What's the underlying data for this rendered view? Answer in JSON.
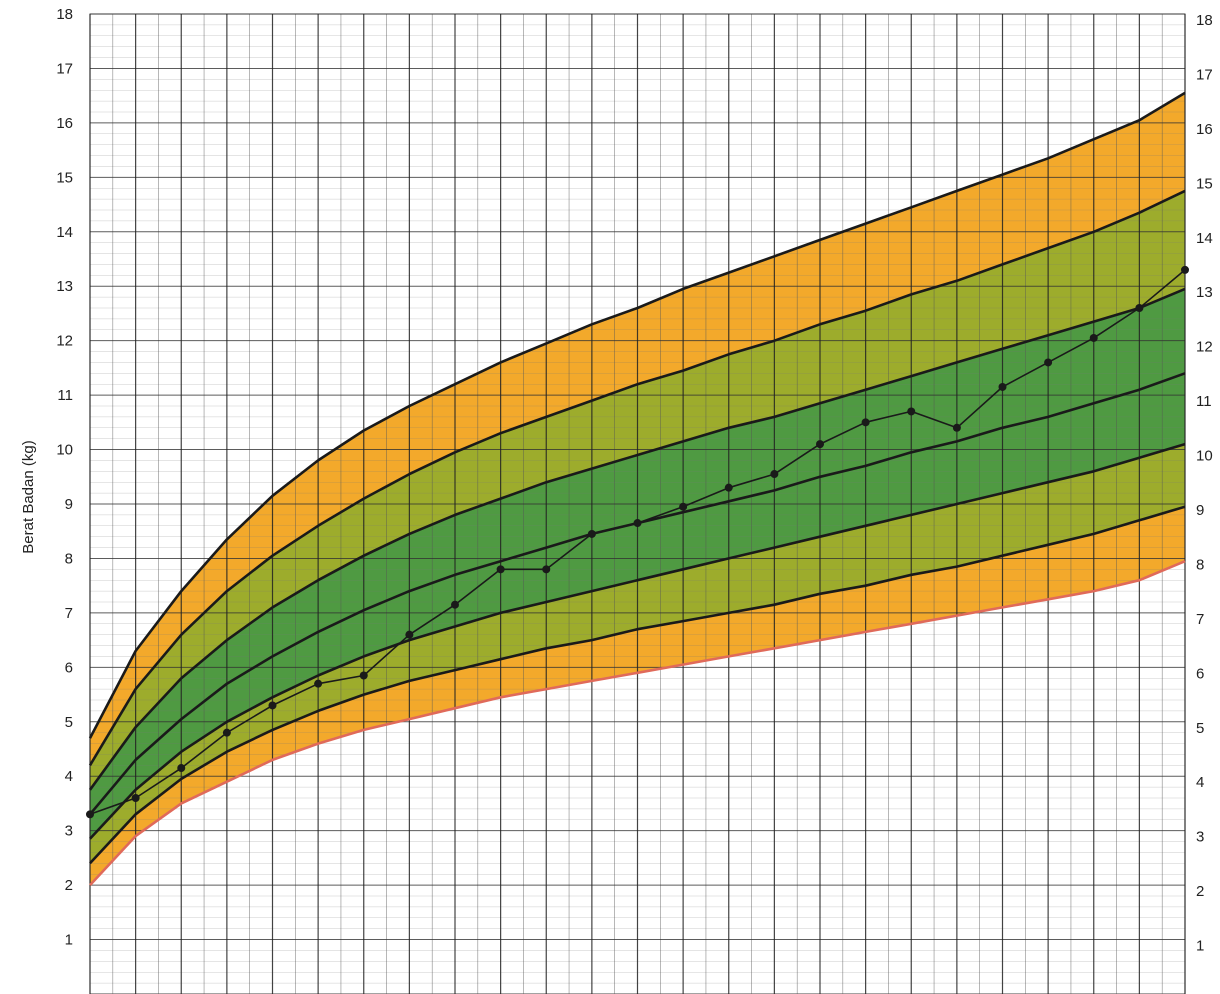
{
  "chart_data": {
    "type": "line",
    "ylabel": "Berat Badan (kg)",
    "ylim": [
      0,
      18
    ],
    "y_ticks": [
      "1",
      "2",
      "3",
      "4",
      "5",
      "6",
      "7",
      "8",
      "9",
      "10",
      "11",
      "12",
      "13",
      "14",
      "15",
      "16",
      "17",
      "18"
    ],
    "grid": true,
    "x_unlabeled_major_cells": 24,
    "curves": [
      {
        "name": "",
        "points": [
          [
            0,
            2.0
          ],
          [
            1,
            2.9
          ],
          [
            2,
            3.5
          ],
          [
            3,
            3.9
          ],
          [
            4,
            4.3
          ],
          [
            5,
            4.6
          ],
          [
            6,
            4.85
          ],
          [
            7,
            5.05
          ],
          [
            8,
            5.25
          ],
          [
            9,
            5.45
          ],
          [
            10,
            5.6
          ],
          [
            11,
            5.75
          ],
          [
            12,
            5.9
          ],
          [
            13,
            6.05
          ],
          [
            14,
            6.2
          ],
          [
            15,
            6.35
          ],
          [
            16,
            6.5
          ],
          [
            17,
            6.65
          ],
          [
            18,
            6.8
          ],
          [
            19,
            6.95
          ],
          [
            20,
            7.1
          ],
          [
            21,
            7.25
          ],
          [
            22,
            7.4
          ],
          [
            23,
            7.6
          ],
          [
            24,
            7.95
          ]
        ]
      },
      {
        "name": "",
        "points": [
          [
            0,
            2.4
          ],
          [
            1,
            3.3
          ],
          [
            2,
            3.95
          ],
          [
            3,
            4.45
          ],
          [
            4,
            4.85
          ],
          [
            5,
            5.2
          ],
          [
            6,
            5.5
          ],
          [
            7,
            5.75
          ],
          [
            8,
            5.95
          ],
          [
            9,
            6.15
          ],
          [
            10,
            6.35
          ],
          [
            11,
            6.5
          ],
          [
            12,
            6.7
          ],
          [
            13,
            6.85
          ],
          [
            14,
            7.0
          ],
          [
            15,
            7.15
          ],
          [
            16,
            7.35
          ],
          [
            17,
            7.5
          ],
          [
            18,
            7.7
          ],
          [
            19,
            7.85
          ],
          [
            20,
            8.05
          ],
          [
            21,
            8.25
          ],
          [
            22,
            8.45
          ],
          [
            23,
            8.7
          ],
          [
            24,
            8.95
          ]
        ]
      },
      {
        "name": "",
        "points": [
          [
            0,
            2.85
          ],
          [
            1,
            3.75
          ],
          [
            2,
            4.45
          ],
          [
            3,
            5.0
          ],
          [
            4,
            5.45
          ],
          [
            5,
            5.85
          ],
          [
            6,
            6.2
          ],
          [
            7,
            6.5
          ],
          [
            8,
            6.75
          ],
          [
            9,
            7.0
          ],
          [
            10,
            7.2
          ],
          [
            11,
            7.4
          ],
          [
            12,
            7.6
          ],
          [
            13,
            7.8
          ],
          [
            14,
            8.0
          ],
          [
            15,
            8.2
          ],
          [
            16,
            8.4
          ],
          [
            17,
            8.6
          ],
          [
            18,
            8.8
          ],
          [
            19,
            9.0
          ],
          [
            20,
            9.2
          ],
          [
            21,
            9.4
          ],
          [
            22,
            9.6
          ],
          [
            23,
            9.85
          ],
          [
            24,
            10.1
          ]
        ]
      },
      {
        "name": "",
        "points": [
          [
            0,
            3.3
          ],
          [
            1,
            4.3
          ],
          [
            2,
            5.05
          ],
          [
            3,
            5.7
          ],
          [
            4,
            6.2
          ],
          [
            5,
            6.65
          ],
          [
            6,
            7.05
          ],
          [
            7,
            7.4
          ],
          [
            8,
            7.7
          ],
          [
            9,
            7.95
          ],
          [
            10,
            8.2
          ],
          [
            11,
            8.45
          ],
          [
            12,
            8.65
          ],
          [
            13,
            8.85
          ],
          [
            14,
            9.05
          ],
          [
            15,
            9.25
          ],
          [
            16,
            9.5
          ],
          [
            17,
            9.7
          ],
          [
            18,
            9.95
          ],
          [
            19,
            10.15
          ],
          [
            20,
            10.4
          ],
          [
            21,
            10.6
          ],
          [
            22,
            10.85
          ],
          [
            23,
            11.1
          ],
          [
            24,
            11.4
          ]
        ]
      },
      {
        "name": "",
        "points": [
          [
            0,
            3.75
          ],
          [
            1,
            4.9
          ],
          [
            2,
            5.8
          ],
          [
            3,
            6.5
          ],
          [
            4,
            7.1
          ],
          [
            5,
            7.6
          ],
          [
            6,
            8.05
          ],
          [
            7,
            8.45
          ],
          [
            8,
            8.8
          ],
          [
            9,
            9.1
          ],
          [
            10,
            9.4
          ],
          [
            11,
            9.65
          ],
          [
            12,
            9.9
          ],
          [
            13,
            10.15
          ],
          [
            14,
            10.4
          ],
          [
            15,
            10.6
          ],
          [
            16,
            10.85
          ],
          [
            17,
            11.1
          ],
          [
            18,
            11.35
          ],
          [
            19,
            11.6
          ],
          [
            20,
            11.85
          ],
          [
            21,
            12.1
          ],
          [
            22,
            12.35
          ],
          [
            23,
            12.6
          ],
          [
            24,
            12.95
          ]
        ]
      },
      {
        "name": "",
        "points": [
          [
            0,
            4.2
          ],
          [
            1,
            5.6
          ],
          [
            2,
            6.6
          ],
          [
            3,
            7.4
          ],
          [
            4,
            8.05
          ],
          [
            5,
            8.6
          ],
          [
            6,
            9.1
          ],
          [
            7,
            9.55
          ],
          [
            8,
            9.95
          ],
          [
            9,
            10.3
          ],
          [
            10,
            10.6
          ],
          [
            11,
            10.9
          ],
          [
            12,
            11.2
          ],
          [
            13,
            11.45
          ],
          [
            14,
            11.75
          ],
          [
            15,
            12.0
          ],
          [
            16,
            12.3
          ],
          [
            17,
            12.55
          ],
          [
            18,
            12.85
          ],
          [
            19,
            13.1
          ],
          [
            20,
            13.4
          ],
          [
            21,
            13.7
          ],
          [
            22,
            14.0
          ],
          [
            23,
            14.35
          ],
          [
            24,
            14.75
          ]
        ]
      },
      {
        "name": "",
        "points": [
          [
            0,
            4.7
          ],
          [
            1,
            6.3
          ],
          [
            2,
            7.4
          ],
          [
            3,
            8.35
          ],
          [
            4,
            9.15
          ],
          [
            5,
            9.8
          ],
          [
            6,
            10.35
          ],
          [
            7,
            10.8
          ],
          [
            8,
            11.2
          ],
          [
            9,
            11.6
          ],
          [
            10,
            11.95
          ],
          [
            11,
            12.3
          ],
          [
            12,
            12.6
          ],
          [
            13,
            12.95
          ],
          [
            14,
            13.25
          ],
          [
            15,
            13.55
          ],
          [
            16,
            13.85
          ],
          [
            17,
            14.15
          ],
          [
            18,
            14.45
          ],
          [
            19,
            14.75
          ],
          [
            20,
            15.05
          ],
          [
            21,
            15.35
          ],
          [
            22,
            15.7
          ],
          [
            23,
            16.05
          ],
          [
            24,
            16.55
          ]
        ]
      }
    ],
    "band_colors": [
      "#f3a92b",
      "#9dac2c",
      "#4f9a42",
      "#4f9a42",
      "#9dac2c",
      "#f3a92b"
    ],
    "curve_color": "#1a1a1a",
    "bottom_curve_color": "#e06a5a",
    "series": [
      {
        "name": "",
        "color": "#1a1a1a",
        "points": [
          [
            0,
            3.3
          ],
          [
            1,
            3.6
          ],
          [
            2,
            4.15
          ],
          [
            3,
            4.8
          ],
          [
            4,
            5.3
          ],
          [
            5,
            5.7
          ],
          [
            6,
            5.85
          ],
          [
            7,
            6.6
          ],
          [
            8,
            7.15
          ],
          [
            9,
            7.8
          ],
          [
            10,
            7.8
          ],
          [
            11,
            8.45
          ],
          [
            12,
            8.65
          ],
          [
            13,
            8.95
          ],
          [
            14,
            9.3
          ],
          [
            15,
            9.55
          ],
          [
            16,
            10.1
          ],
          [
            17,
            10.5
          ],
          [
            18,
            10.7
          ],
          [
            19,
            10.4
          ],
          [
            20,
            11.15
          ],
          [
            21,
            11.6
          ],
          [
            22,
            12.05
          ],
          [
            23,
            12.6
          ],
          [
            24,
            13.3
          ]
        ]
      }
    ]
  }
}
